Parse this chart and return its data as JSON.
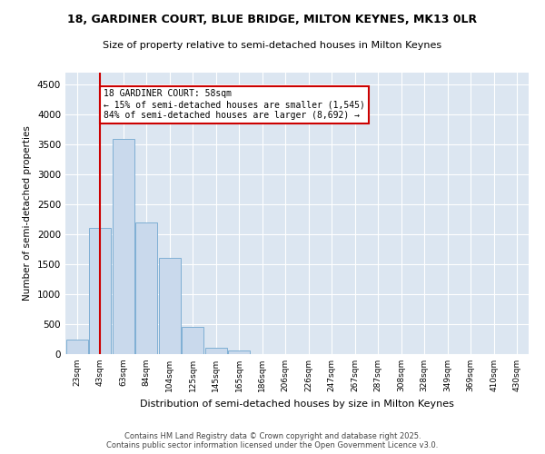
{
  "title1": "18, GARDINER COURT, BLUE BRIDGE, MILTON KEYNES, MK13 0LR",
  "title2": "Size of property relative to semi-detached houses in Milton Keynes",
  "xlabel": "Distribution of semi-detached houses by size in Milton Keynes",
  "ylabel": "Number of semi-detached properties",
  "categories": [
    "23sqm",
    "43sqm",
    "63sqm",
    "84sqm",
    "104sqm",
    "125sqm",
    "145sqm",
    "165sqm",
    "186sqm",
    "206sqm",
    "226sqm",
    "247sqm",
    "267sqm",
    "287sqm",
    "308sqm",
    "328sqm",
    "349sqm",
    "369sqm",
    "410sqm",
    "430sqm"
  ],
  "values": [
    250,
    2100,
    3600,
    2200,
    1600,
    450,
    100,
    60,
    0,
    0,
    0,
    0,
    0,
    0,
    0,
    0,
    0,
    0,
    0,
    0
  ],
  "bar_color": "#c9d9ec",
  "bar_edge_color": "#7fafd4",
  "ylim": [
    0,
    4700
  ],
  "yticks": [
    0,
    500,
    1000,
    1500,
    2000,
    2500,
    3000,
    3500,
    4000,
    4500
  ],
  "property_line_x": 1.0,
  "annotation_title": "18 GARDINER COURT: 58sqm",
  "annotation_line1": "← 15% of semi-detached houses are smaller (1,545)",
  "annotation_line2": "84% of semi-detached houses are larger (8,692) →",
  "annotation_box_color": "#ffffff",
  "annotation_box_edge": "#cc0000",
  "vline_color": "#cc0000",
  "background_color": "#dce6f1",
  "fig_background_color": "#ffffff",
  "footer1": "Contains HM Land Registry data © Crown copyright and database right 2025.",
  "footer2": "Contains public sector information licensed under the Open Government Licence v3.0."
}
